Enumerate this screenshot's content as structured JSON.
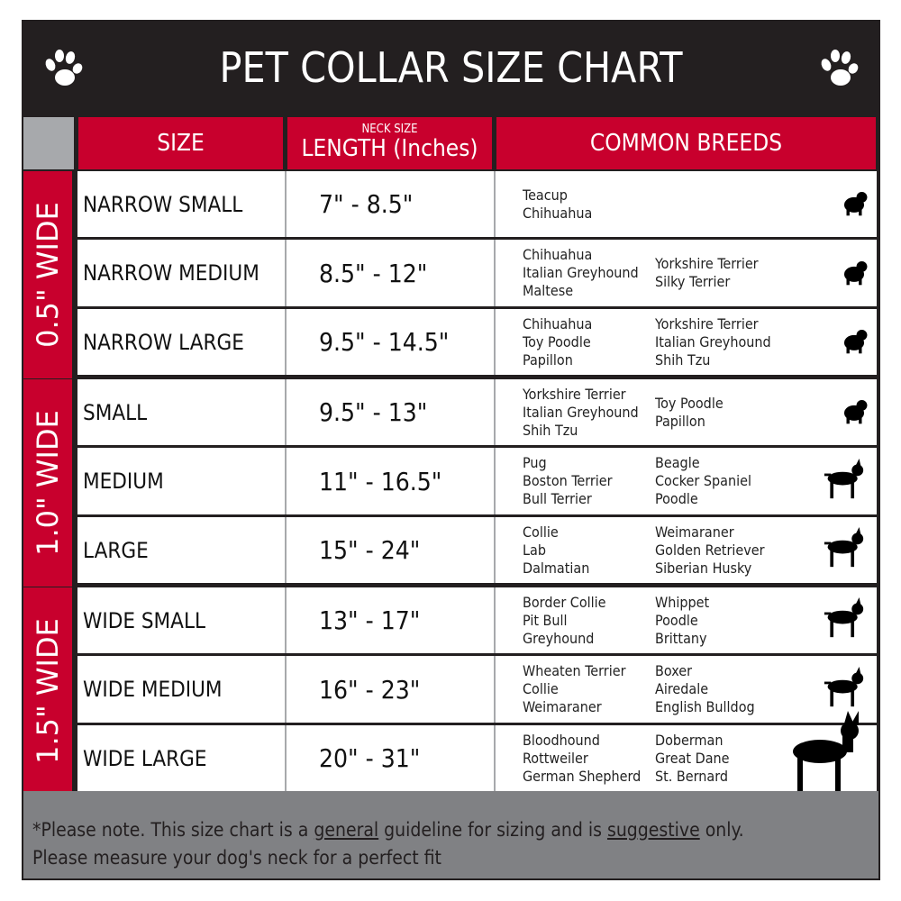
{
  "title": "PET COLLAR SIZE CHART",
  "icons": {
    "title_left": "paw-icon",
    "title_right": "paw-icon"
  },
  "colors": {
    "accent_red": "#c8002d",
    "dark": "#231f20",
    "footer_gray": "#808184"
  },
  "header": {
    "size": "SIZE",
    "neck_size": "NECK SIZE",
    "length": "LENGTH (Inches)",
    "breeds": "COMMON BREEDS"
  },
  "groups": [
    {
      "label": "0.5\" WIDE",
      "rows": [
        {
          "size": "NARROW SMALL",
          "length": "7\" - 8.5\"",
          "breeds_a": [
            "Teacup",
            "Chihuahua"
          ],
          "breeds_b": [],
          "dog": "yorkie-silhouette-icon"
        },
        {
          "size": "NARROW MEDIUM",
          "length": "8.5\" - 12\"",
          "breeds_a": [
            "Chihuahua",
            "Italian Greyhound",
            "Maltese"
          ],
          "breeds_b": [
            "Yorkshire Terrier",
            "Silky Terrier"
          ],
          "dog": "chihuahua-silhouette-icon"
        },
        {
          "size": "NARROW LARGE",
          "length": "9.5\" - 14.5\"",
          "breeds_a": [
            "Chihuahua",
            "Toy Poodle",
            "Papillon"
          ],
          "breeds_b": [
            "Yorkshire Terrier",
            "Italian Greyhound",
            "Shih Tzu"
          ],
          "dog": "pomeranian-silhouette-icon"
        }
      ]
    },
    {
      "label": "1.0\" WIDE",
      "rows": [
        {
          "size": "SMALL",
          "length": "9.5\" - 13\"",
          "breeds_a": [
            "Yorkshire Terrier",
            "Italian Greyhound",
            "Shih Tzu"
          ],
          "breeds_b": [
            "Toy Poodle",
            "Papillon"
          ],
          "dog": "pomeranian-silhouette-icon"
        },
        {
          "size": "MEDIUM",
          "length": "11\" - 16.5\"",
          "breeds_a": [
            "Pug",
            "Boston Terrier",
            "Bull Terrier"
          ],
          "breeds_b": [
            "Beagle",
            "Cocker Spaniel",
            "Poodle"
          ],
          "dog": "spaniel-silhouette-icon"
        },
        {
          "size": "LARGE",
          "length": "15\" - 24\"",
          "breeds_a": [
            "Collie",
            "Lab",
            "Dalmatian"
          ],
          "breeds_b": [
            "Weimaraner",
            "Golden Retriever",
            "Siberian Husky"
          ],
          "dog": "shepherd-silhouette-icon"
        }
      ]
    },
    {
      "label": "1.5\" WIDE",
      "rows": [
        {
          "size": "WIDE SMALL",
          "length": "13\" - 17\"",
          "breeds_a": [
            "Border Collie",
            "Pit Bull",
            "Greyhound"
          ],
          "breeds_b": [
            "Whippet",
            "Poodle",
            "Brittany"
          ],
          "dog": "bulldog-silhouette-icon"
        },
        {
          "size": "WIDE MEDIUM",
          "length": "16\" - 23\"",
          "breeds_a": [
            "Wheaten Terrier",
            "Collie",
            "Weimaraner"
          ],
          "breeds_b": [
            "Boxer",
            "Airedale",
            "English Bulldog"
          ],
          "dog": "pitbull-silhouette-icon"
        },
        {
          "size": "WIDE LARGE",
          "length": "20\" - 31\"",
          "breeds_a": [
            "Bloodhound",
            "Rottweiler",
            "German Shepherd"
          ],
          "breeds_b": [
            "Doberman",
            "Great Dane",
            "St. Bernard"
          ],
          "dog": "doberman-silhouette-icon"
        }
      ]
    }
  ],
  "footer": {
    "p1": "*Please note. This size chart is a",
    "general": "general",
    "p2": "guideline for sizing and is",
    "suggestive": "suggestive",
    "p3": "only.",
    "line2": "Please measure your dog's neck for a perfect fit"
  }
}
